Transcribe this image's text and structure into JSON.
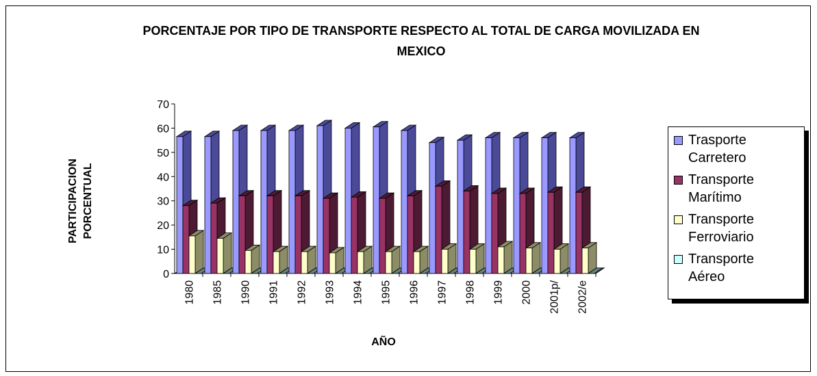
{
  "chart_data": {
    "type": "bar3d",
    "title": "PORCENTAJE POR TIPO DE TRANSPORTE RESPECTO AL TOTAL DE CARGA MOVILIZADA EN MEXICO",
    "x_label": "AÑO",
    "y_label": "PARTICIPACION PORCENTUAL",
    "categories": [
      "1980",
      "1985",
      "1990",
      "1991",
      "1992",
      "1993",
      "1994",
      "1995",
      "1996",
      "1997",
      "1998",
      "1999",
      "2000",
      "2001p/",
      "2002/e"
    ],
    "series": [
      {
        "name": "Trasporte Carretero",
        "color": "#9999ff",
        "side_color": "#4a4a99",
        "values": [
          56.5,
          56.5,
          59,
          59,
          59,
          61,
          60,
          60.5,
          59,
          54,
          55,
          56,
          56,
          56,
          56
        ]
      },
      {
        "name": "Transporte Marítimo",
        "color": "#993366",
        "side_color": "#4d1a33",
        "values": [
          28,
          29,
          32,
          32,
          32,
          31,
          31.5,
          31,
          32,
          36,
          34,
          33,
          33,
          33.5,
          33.5
        ]
      },
      {
        "name": "Transporte Ferroviario",
        "color": "#ffffcc",
        "side_color": "#8c8c66",
        "values": [
          15.5,
          14.5,
          9.5,
          9,
          9,
          8.5,
          9,
          9,
          9,
          10,
          10,
          11,
          10.5,
          10,
          10.5
        ]
      },
      {
        "name": "Transporte Aéreo",
        "color": "#ccffff",
        "side_color": "#668080",
        "values": [
          0,
          0,
          0,
          0,
          0,
          0,
          0,
          0,
          0,
          0,
          0,
          0,
          0,
          0,
          0
        ]
      }
    ],
    "ylim": [
      0,
      70
    ],
    "yticks": [
      0,
      10,
      20,
      30,
      40,
      50,
      60,
      70
    ],
    "legend": "right"
  }
}
